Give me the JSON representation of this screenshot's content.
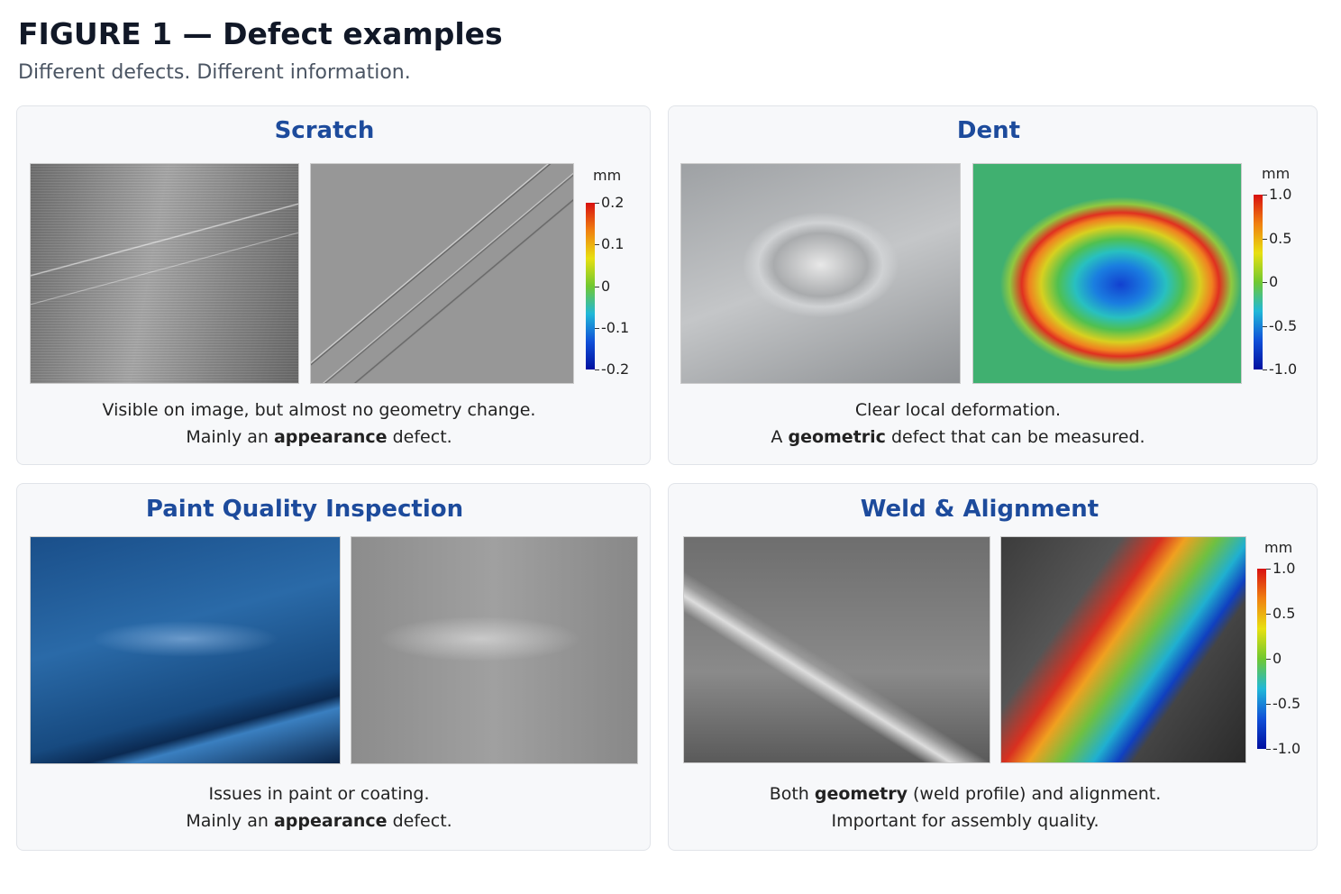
{
  "header": {
    "title": "FIGURE 1 — Defect examples",
    "subtitle": "Different defects. Different information."
  },
  "panels": [
    {
      "title": "Scratch",
      "colorbar": {
        "unit": "mm",
        "ticks": [
          "0.2",
          "0.1",
          "0",
          "-0.1",
          "-0.2"
        ]
      },
      "caption": [
        [
          {
            "text": "Visible on image, but almost no geometry change."
          }
        ],
        [
          {
            "text": "Mainly an "
          },
          {
            "text": "appearance",
            "bold": true
          },
          {
            "text": " defect."
          }
        ]
      ]
    },
    {
      "title": "Dent",
      "colorbar": {
        "unit": "mm",
        "ticks": [
          "1.0",
          "0.5",
          "0",
          "-0.5",
          "-1.0"
        ]
      },
      "caption": [
        [
          {
            "text": "Clear local deformation."
          }
        ],
        [
          {
            "text": "A "
          },
          {
            "text": "geometric",
            "bold": true
          },
          {
            "text": " defect that can be measured."
          }
        ]
      ]
    },
    {
      "title": "Paint Quality Inspection",
      "caption": [
        [
          {
            "text": "Issues in paint or coating."
          }
        ],
        [
          {
            "text": "Mainly an "
          },
          {
            "text": "appearance",
            "bold": true
          },
          {
            "text": " defect."
          }
        ]
      ]
    },
    {
      "title": "Weld & Alignment",
      "colorbar": {
        "unit": "mm",
        "ticks": [
          "1.0",
          "0.5",
          "0",
          "-0.5",
          "-1.0"
        ]
      },
      "caption": [
        [
          {
            "text": "Both "
          },
          {
            "text": "geometry",
            "bold": true
          },
          {
            "text": " (weld profile) and alignment."
          }
        ],
        [
          {
            "text": "Important for assembly quality."
          }
        ]
      ]
    }
  ]
}
